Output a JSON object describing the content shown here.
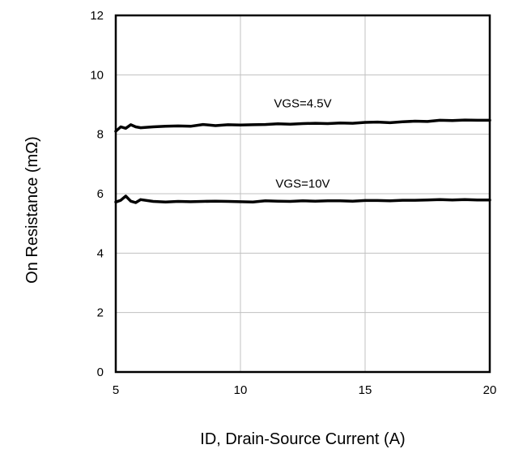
{
  "chart_data": {
    "type": "line",
    "title": "",
    "xlabel": "ID, Drain-Source Current (A)",
    "ylabel": "On Resistance (mΩ)",
    "xlim": [
      5,
      20
    ],
    "ylim": [
      0,
      12
    ],
    "x_ticks": [
      "5",
      "10",
      "15",
      "20"
    ],
    "y_ticks": [
      "0",
      "2",
      "4",
      "6",
      "8",
      "10",
      "12"
    ],
    "grid": true,
    "line_color": "#000000",
    "grid_color": "#c0c0c0",
    "series": [
      {
        "label": "VGS=4.5V",
        "label_pos": [
          12.5,
          8.9
        ],
        "points": [
          [
            5.0,
            8.1
          ],
          [
            5.2,
            8.25
          ],
          [
            5.4,
            8.2
          ],
          [
            5.6,
            8.32
          ],
          [
            5.8,
            8.25
          ],
          [
            6.0,
            8.22
          ],
          [
            6.5,
            8.25
          ],
          [
            7.0,
            8.27
          ],
          [
            7.5,
            8.28
          ],
          [
            8.0,
            8.27
          ],
          [
            8.5,
            8.33
          ],
          [
            9.0,
            8.29
          ],
          [
            9.5,
            8.32
          ],
          [
            10.0,
            8.31
          ],
          [
            10.5,
            8.32
          ],
          [
            11.0,
            8.33
          ],
          [
            11.5,
            8.35
          ],
          [
            12.0,
            8.34
          ],
          [
            12.5,
            8.36
          ],
          [
            13.0,
            8.37
          ],
          [
            13.5,
            8.36
          ],
          [
            14.0,
            8.38
          ],
          [
            14.5,
            8.37
          ],
          [
            15.0,
            8.4
          ],
          [
            15.5,
            8.41
          ],
          [
            16.0,
            8.39
          ],
          [
            16.5,
            8.42
          ],
          [
            17.0,
            8.44
          ],
          [
            17.5,
            8.43
          ],
          [
            18.0,
            8.47
          ],
          [
            18.5,
            8.46
          ],
          [
            19.0,
            8.48
          ],
          [
            19.5,
            8.47
          ],
          [
            20.0,
            8.47
          ]
        ]
      },
      {
        "label": "VGS=10V",
        "label_pos": [
          12.5,
          6.2
        ],
        "points": [
          [
            5.0,
            5.72
          ],
          [
            5.2,
            5.78
          ],
          [
            5.4,
            5.92
          ],
          [
            5.6,
            5.75
          ],
          [
            5.8,
            5.7
          ],
          [
            6.0,
            5.8
          ],
          [
            6.5,
            5.74
          ],
          [
            7.0,
            5.72
          ],
          [
            7.5,
            5.74
          ],
          [
            8.0,
            5.73
          ],
          [
            8.5,
            5.74
          ],
          [
            9.0,
            5.75
          ],
          [
            9.5,
            5.74
          ],
          [
            10.0,
            5.73
          ],
          [
            10.5,
            5.72
          ],
          [
            11.0,
            5.76
          ],
          [
            11.5,
            5.75
          ],
          [
            12.0,
            5.74
          ],
          [
            12.5,
            5.76
          ],
          [
            13.0,
            5.75
          ],
          [
            13.5,
            5.76
          ],
          [
            14.0,
            5.76
          ],
          [
            14.5,
            5.75
          ],
          [
            15.0,
            5.77
          ],
          [
            15.5,
            5.77
          ],
          [
            16.0,
            5.76
          ],
          [
            16.5,
            5.78
          ],
          [
            17.0,
            5.78
          ],
          [
            17.5,
            5.79
          ],
          [
            18.0,
            5.8
          ],
          [
            18.5,
            5.79
          ],
          [
            19.0,
            5.8
          ],
          [
            19.5,
            5.79
          ],
          [
            20.0,
            5.79
          ]
        ]
      }
    ]
  }
}
